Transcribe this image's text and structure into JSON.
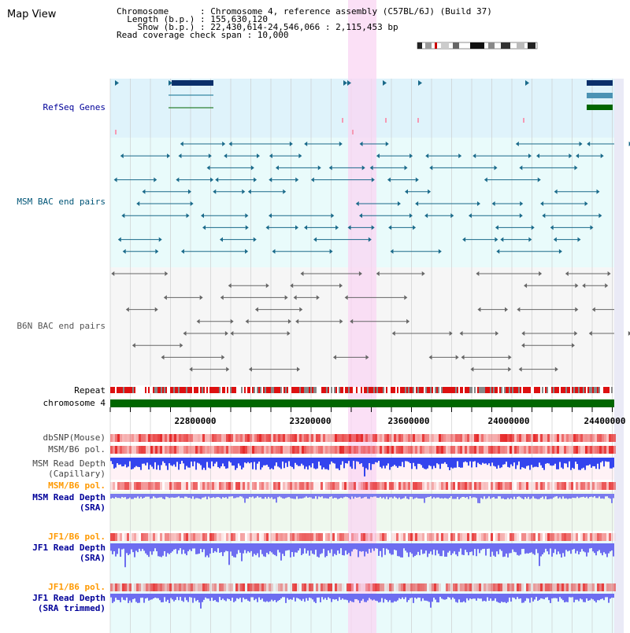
{
  "title": "Map View",
  "header": {
    "chromosome": "Chromosome      : Chromosome 4, reference assembly (C57BL/6J) (Build 37)",
    "length": "  Length (b.p.) : 155,630,120",
    "show": "    Show (b.p.) : 22,430,614-24,546,066 : 2,115,453 bp",
    "coverage": "Read coverage check span : 10,000"
  },
  "tracks": {
    "refseq": "RefSeq Genes",
    "msm_bac": "MSM BAC end pairs",
    "b6n_bac": "B6N BAC end pairs",
    "repeat": "Repeat",
    "chromosome": "chromosome 4",
    "dbsnp": "dbSNP(Mouse)",
    "msm_b6_pol_1": "MSM/B6 pol.",
    "msm_depth_cap_1": "MSM Read Depth",
    "msm_depth_cap_2": "(Capillary)",
    "msm_b6_pol_2": "MSM/B6 pol.",
    "msm_depth_sra_1": "MSM Read Depth",
    "msm_depth_sra_2": "(SRA)",
    "jf1_b6_pol_1": "JF1/B6 pol.",
    "jf1_depth_sra_1": "JF1 Read Depth",
    "jf1_depth_sra_2": "(SRA)",
    "jf1_b6_pol_2": "JF1/B6 pol.",
    "jf1_depth_trim_1": "JF1 Read Depth",
    "jf1_depth_trim_2": "(SRA trimmed)"
  },
  "ruler": {
    "ticks": [
      "22800000",
      "23200000",
      "23600000",
      "24000000",
      "24400000"
    ]
  },
  "colors": {
    "refseq_bg": "#dff3fb",
    "msm_bg": "#e9fbfb",
    "highlight": "#f9d6f3",
    "chromosome": "#006600",
    "repeat": "#dd1111",
    "label_blue": "#000099",
    "label_orange": "#ff9900",
    "depth_blue": "#3344ee"
  }
}
